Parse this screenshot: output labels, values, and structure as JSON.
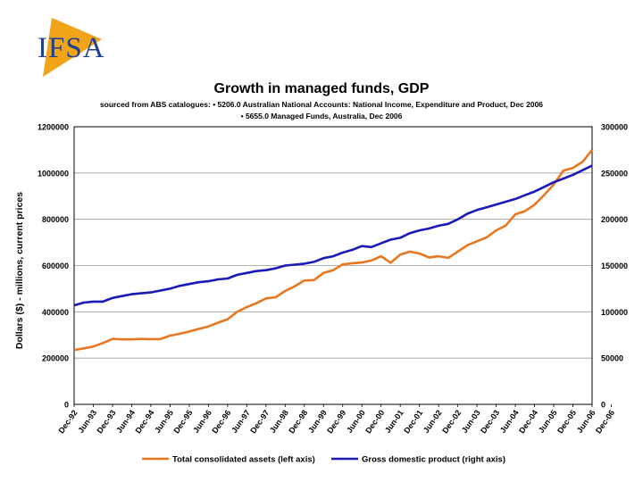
{
  "logo": {
    "text": "IFSA",
    "colors": {
      "text": "#1f3f93",
      "shape": "#f2a418"
    }
  },
  "chart_data": {
    "type": "line",
    "title": "Growth in managed funds, GDP",
    "subtitle_lines": [
      "sourced from ABS catalogues: • 5206.0 Australian National Accounts: National Income, Expenditure and Product, Dec 2006",
      "• 5655.0 Managed Funds, Australia, Dec 2006"
    ],
    "ylabel": "Dollars ($) - millions, current prices",
    "xlabel": "",
    "ylim_left": [
      0,
      1200000
    ],
    "ylim_right": [
      0,
      300000
    ],
    "yticks_left": [
      "0",
      "200000",
      "400000",
      "600000",
      "800000",
      "1000000",
      "1200000"
    ],
    "yticks_right": [
      "0",
      "50000",
      "100000",
      "150000",
      "200000",
      "250000",
      "300000"
    ],
    "grid": true,
    "legend_position": "bottom",
    "x_tick_labels": [
      "Dec-92",
      "Jun-93",
      "Dec-93",
      "Jun-94",
      "Dec-94",
      "Jun-95",
      "Dec-95",
      "Jun-96",
      "Dec-96",
      "Jun-97",
      "Dec-97",
      "Jun-98",
      "Dec-98",
      "Jun-99",
      "Dec-99",
      "Jun-00",
      "Dec-00",
      "Jun-01",
      "Dec-01",
      "Jun-02",
      "Dec-02",
      "Jun-03",
      "Dec-03",
      "Jun-04",
      "Dec-04",
      "Jun-05",
      "Dec-05",
      "Jun-06",
      "Dec-06"
    ],
    "x_points_per_tick": 2,
    "series": [
      {
        "name": "Total consolidated assets (left axis)",
        "axis": "left",
        "color": "#e87722",
        "values": [
          235000,
          242000,
          250000,
          265000,
          283000,
          281000,
          281000,
          283000,
          282000,
          282000,
          297000,
          305000,
          315000,
          326000,
          337000,
          353000,
          368000,
          400000,
          420000,
          437000,
          458000,
          463000,
          490000,
          510000,
          535000,
          537000,
          568000,
          580000,
          605000,
          610000,
          613000,
          622000,
          640000,
          612000,
          647000,
          660000,
          652000,
          635000,
          640000,
          633000,
          660000,
          688000,
          705000,
          722000,
          752000,
          773000,
          822000,
          835000,
          863000,
          905000,
          950000,
          1010000,
          1022000,
          1048000,
          1100000
        ]
      },
      {
        "name": "Gross domestic product (right axis)",
        "axis": "right",
        "color": "#1a1ab8",
        "values": [
          107000,
          110000,
          111000,
          111000,
          115000,
          117000,
          119000,
          120000,
          121000,
          123000,
          125000,
          128000,
          130000,
          132000,
          133000,
          135000,
          136000,
          140000,
          142000,
          144000,
          145000,
          147000,
          150000,
          151000,
          152000,
          154000,
          158000,
          160000,
          164000,
          167000,
          171000,
          170000,
          174000,
          178000,
          180000,
          185000,
          188000,
          190000,
          193000,
          195000,
          200000,
          206000,
          210000,
          213000,
          216000,
          219000,
          222000,
          226000,
          230000,
          235000,
          240000,
          244000,
          248000,
          253000,
          258000
        ]
      }
    ]
  }
}
